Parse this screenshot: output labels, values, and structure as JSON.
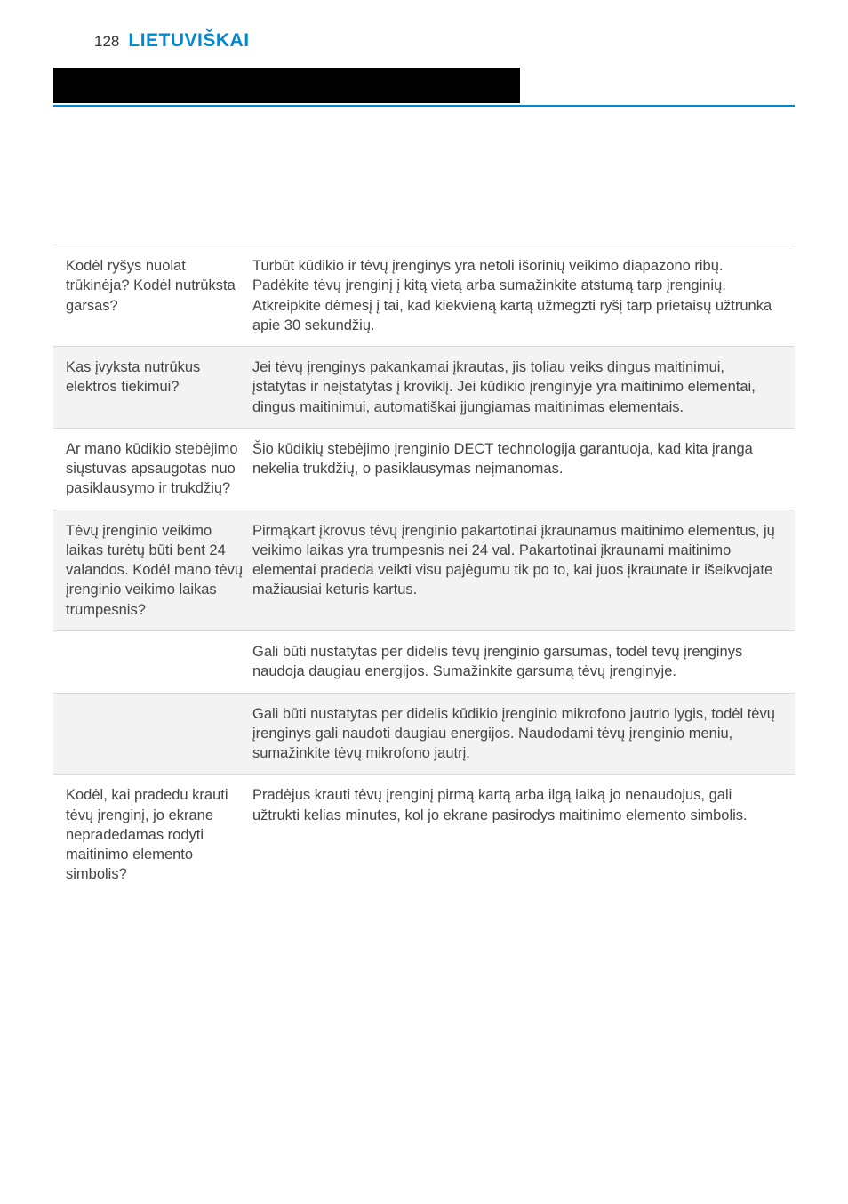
{
  "header": {
    "page_number": "128",
    "title": "LIETUVIŠKAI"
  },
  "colors": {
    "accent_blue": "#0089d0",
    "black_bar": "#000000",
    "alt_row": "#f3f3f3",
    "border": "#d9d9d9",
    "text": "#444444"
  },
  "faq": [
    {
      "q": "Kodėl ryšys nuolat trūkinėja? Kodėl nutrūksta garsas?",
      "a": "Turbūt kūdikio ir tėvų įrenginys yra netoli išorinių veikimo diapazono ribų. Padėkite tėvų įrenginį į kitą vietą arba sumažinkite atstumą tarp įrenginių. Atkreipkite dėmesį į tai, kad kiekvieną kartą užmegzti ryšį tarp prietaisų užtrunka apie 30 sekundžių.",
      "alt": false
    },
    {
      "q": "Kas įvyksta nutrūkus elektros tiekimui?",
      "a": "Jei tėvų įrenginys pakankamai įkrautas, jis toliau veiks dingus maitinimui, įstatytas ir neįstatytas į kroviklį. Jei kūdikio įrenginyje yra maitinimo elementai, dingus maitinimui, automatiškai įjungiamas maitinimas elementais.",
      "alt": true
    },
    {
      "q": "Ar mano kūdikio stebėjimo siųstuvas apsaugotas nuo pasiklausymo ir trukdžių?",
      "a": "Šio kūdikių stebėjimo įrenginio DECT technologija garantuoja, kad kita įranga nekelia trukdžių, o pasiklausymas neįmanomas.",
      "alt": false
    },
    {
      "q": "Tėvų įrenginio veikimo laikas turėtų būti bent 24 valandos. Kodėl mano tėvų įrenginio veikimo laikas trumpesnis?",
      "a": "Pirmąkart įkrovus tėvų įrenginio pakartotinai įkraunamus maitinimo elementus, jų veikimo laikas yra trumpesnis nei 24 val. Pakartotinai įkraunami maitinimo elementai pradeda veikti visu pajėgumu tik po to, kai juos įkraunate ir išeikvojate mažiausiai keturis kartus.",
      "alt": true
    },
    {
      "q": "",
      "a": "Gali būti nustatytas per didelis tėvų įrenginio garsumas, todėl tėvų įrenginys naudoja daugiau energijos. Sumažinkite garsumą tėvų įrenginyje.",
      "alt": false
    },
    {
      "q": "",
      "a": "Gali būti nustatytas per didelis kūdikio įrenginio mikrofono jautrio lygis, todėl tėvų įrenginys gali naudoti daugiau energijos. Naudodami tėvų įrenginio meniu, sumažinkite tėvų mikrofono jautrį.",
      "alt": true
    },
    {
      "q": "Kodėl, kai pradedu krauti tėvų įrenginį, jo ekrane nepradedamas rodyti maitinimo elemento simbolis?",
      "a": "Pradėjus krauti tėvų įrenginį pirmą kartą arba ilgą laiką jo nenaudojus, gali užtrukti kelias minutes, kol jo ekrane pasirodys maitinimo elemento simbolis.",
      "alt": false
    }
  ]
}
